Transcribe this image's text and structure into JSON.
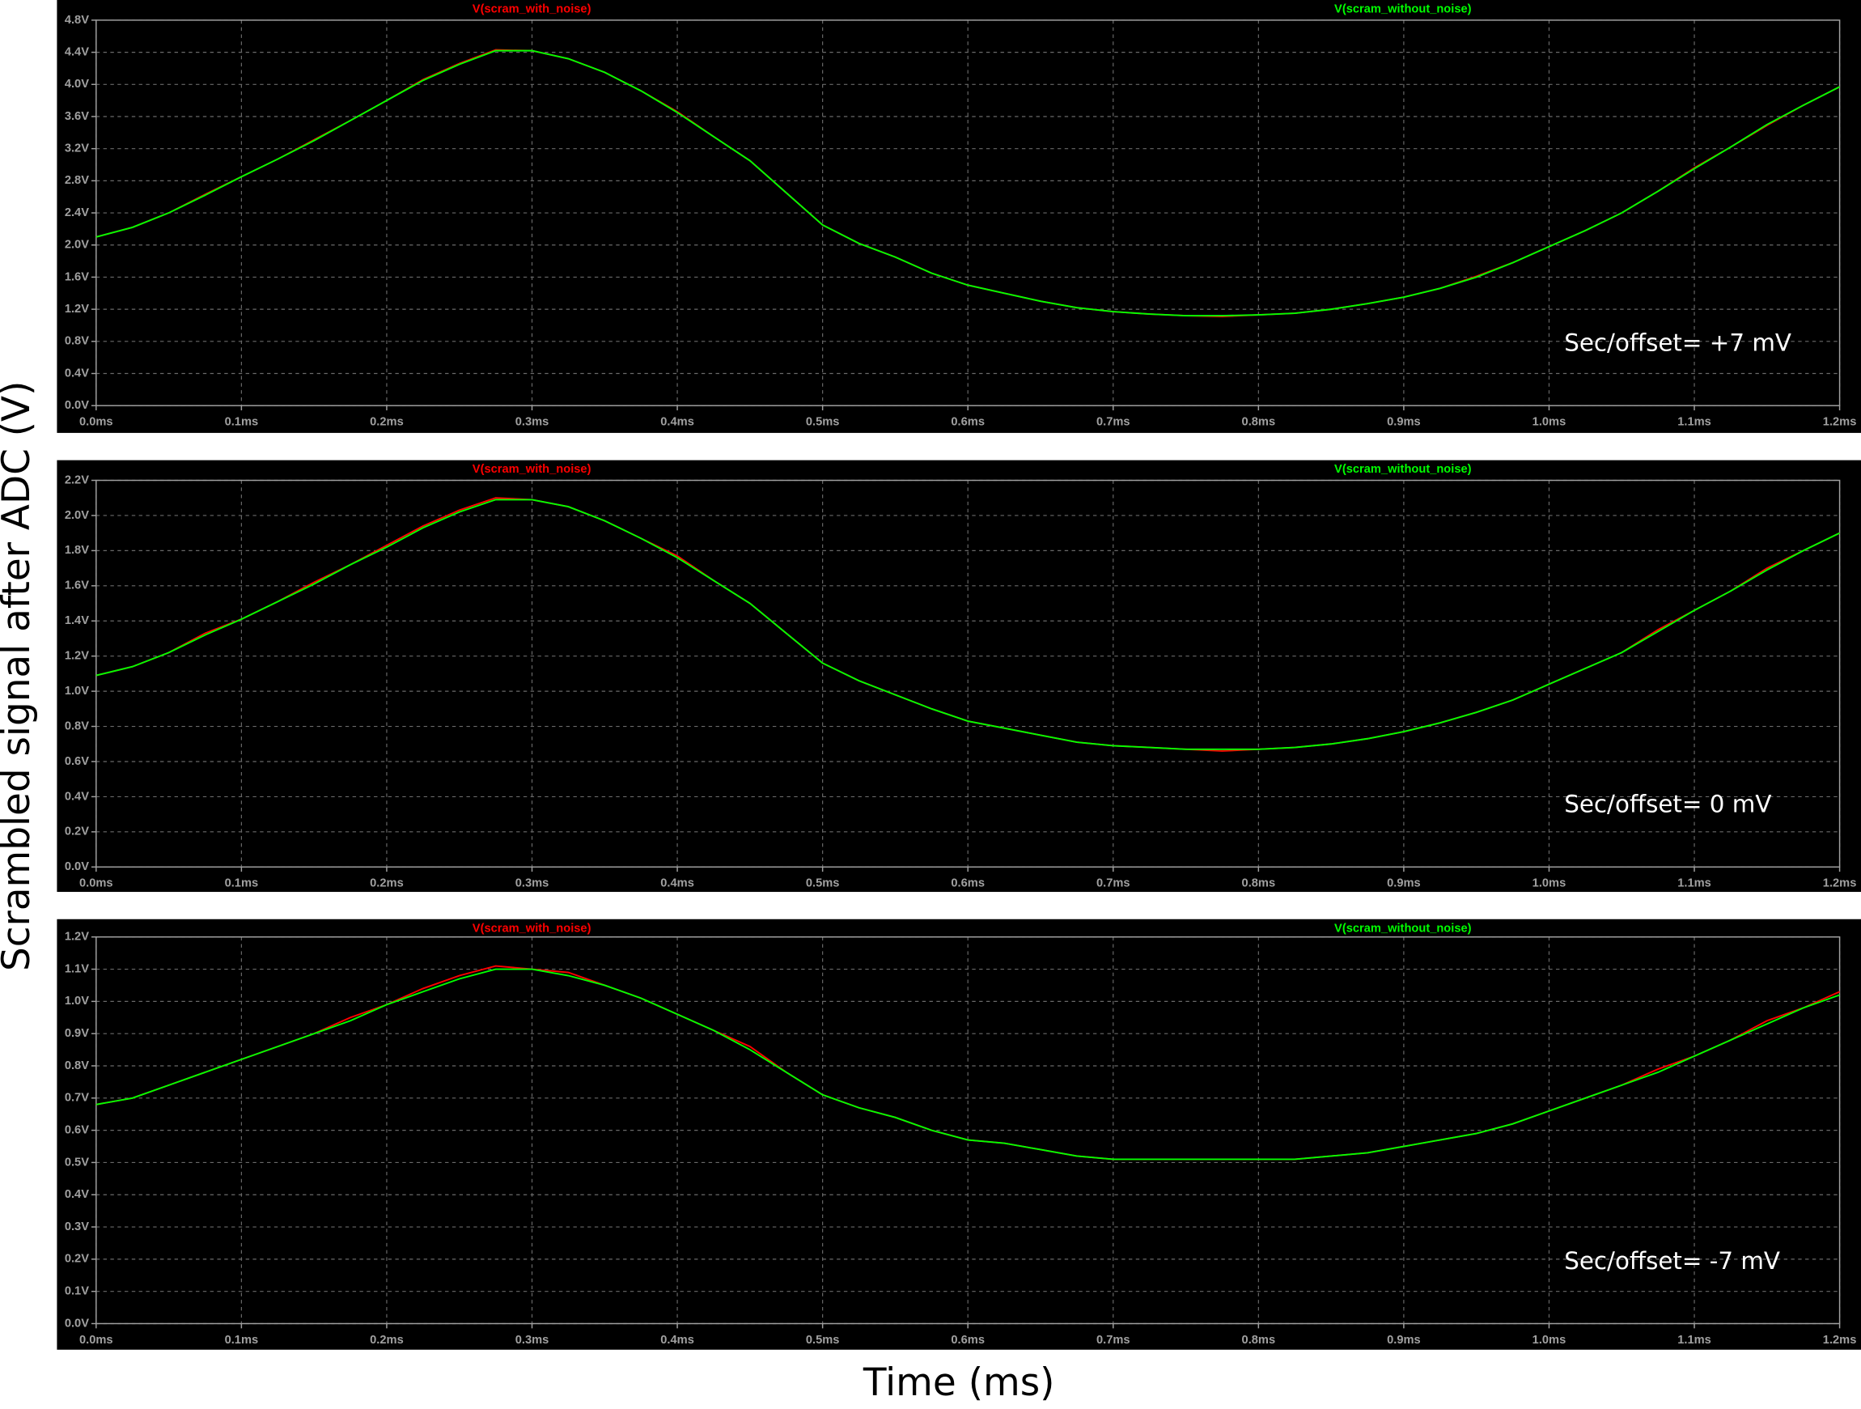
{
  "figure": {
    "xlabel": "Time (ms)",
    "ylabel": "Scrambled signal after ADC (V)"
  },
  "chart_data": [
    {
      "type": "line",
      "annotation": "Sec/offset= +7 mV",
      "x": [
        0,
        0.025,
        0.05,
        0.075,
        0.1,
        0.125,
        0.15,
        0.175,
        0.2,
        0.225,
        0.25,
        0.275,
        0.3,
        0.325,
        0.35,
        0.375,
        0.4,
        0.425,
        0.45,
        0.475,
        0.5,
        0.525,
        0.55,
        0.575,
        0.6,
        0.625,
        0.65,
        0.675,
        0.7,
        0.725,
        0.75,
        0.775,
        0.8,
        0.825,
        0.85,
        0.875,
        0.9,
        0.925,
        0.95,
        0.975,
        1.0,
        1.025,
        1.05,
        1.075,
        1.1,
        1.125,
        1.15,
        1.175,
        1.2
      ],
      "series": [
        {
          "name": "V(scram_with_noise)",
          "color": "#ff0000",
          "values": [
            2.1,
            2.22,
            2.4,
            2.63,
            2.85,
            3.07,
            3.31,
            3.55,
            3.8,
            4.06,
            4.26,
            4.43,
            4.42,
            4.32,
            4.15,
            3.92,
            3.66,
            3.35,
            3.05,
            2.65,
            2.25,
            2.02,
            1.85,
            1.65,
            1.5,
            1.4,
            1.3,
            1.22,
            1.17,
            1.14,
            1.12,
            1.11,
            1.13,
            1.15,
            1.2,
            1.27,
            1.35,
            1.46,
            1.61,
            1.78,
            1.98,
            2.18,
            2.4,
            2.67,
            2.96,
            3.22,
            3.49,
            3.74,
            3.97
          ]
        },
        {
          "name": "V(scram_without_noise)",
          "color": "#00ff00",
          "values": [
            2.1,
            2.22,
            2.4,
            2.62,
            2.85,
            3.07,
            3.3,
            3.55,
            3.8,
            4.05,
            4.25,
            4.42,
            4.42,
            4.32,
            4.15,
            3.92,
            3.65,
            3.35,
            3.05,
            2.65,
            2.25,
            2.02,
            1.85,
            1.65,
            1.5,
            1.4,
            1.3,
            1.22,
            1.17,
            1.14,
            1.12,
            1.12,
            1.13,
            1.15,
            1.2,
            1.27,
            1.35,
            1.46,
            1.6,
            1.78,
            1.98,
            2.18,
            2.4,
            2.67,
            2.95,
            3.22,
            3.5,
            3.74,
            3.97
          ]
        }
      ],
      "xlim": [
        0,
        1.2
      ],
      "xticks": [
        {
          "value": 0,
          "label": "0.0ms"
        },
        {
          "value": 0.1,
          "label": "0.1ms"
        },
        {
          "value": 0.2,
          "label": "0.2ms"
        },
        {
          "value": 0.3,
          "label": "0.3ms"
        },
        {
          "value": 0.4,
          "label": "0.4ms"
        },
        {
          "value": 0.5,
          "label": "0.5ms"
        },
        {
          "value": 0.6,
          "label": "0.6ms"
        },
        {
          "value": 0.7,
          "label": "0.7ms"
        },
        {
          "value": 0.8,
          "label": "0.8ms"
        },
        {
          "value": 0.9,
          "label": "0.9ms"
        },
        {
          "value": 1.0,
          "label": "1.0ms"
        },
        {
          "value": 1.1,
          "label": "1.1ms"
        },
        {
          "value": 1.2,
          "label": "1.2ms"
        }
      ],
      "ylim": [
        0,
        4.8
      ],
      "yticks": [
        {
          "value": 0,
          "label": "0.0V"
        },
        {
          "value": 0.4,
          "label": "0.4V"
        },
        {
          "value": 0.8,
          "label": "0.8V"
        },
        {
          "value": 1.2,
          "label": "1.2V"
        },
        {
          "value": 1.6,
          "label": "1.6V"
        },
        {
          "value": 2.0,
          "label": "2.0V"
        },
        {
          "value": 2.4,
          "label": "2.4V"
        },
        {
          "value": 2.8,
          "label": "2.8V"
        },
        {
          "value": 3.2,
          "label": "3.2V"
        },
        {
          "value": 3.6,
          "label": "3.6V"
        },
        {
          "value": 4.0,
          "label": "4.0V"
        },
        {
          "value": 4.4,
          "label": "4.4V"
        },
        {
          "value": 4.8,
          "label": "4.8V"
        }
      ],
      "grid": true
    },
    {
      "type": "line",
      "annotation": "Sec/offset= 0 mV",
      "x": [
        0,
        0.025,
        0.05,
        0.075,
        0.1,
        0.125,
        0.15,
        0.175,
        0.2,
        0.225,
        0.25,
        0.275,
        0.3,
        0.325,
        0.35,
        0.375,
        0.4,
        0.425,
        0.45,
        0.475,
        0.5,
        0.525,
        0.55,
        0.575,
        0.6,
        0.625,
        0.65,
        0.675,
        0.7,
        0.725,
        0.75,
        0.775,
        0.8,
        0.825,
        0.85,
        0.875,
        0.9,
        0.925,
        0.95,
        0.975,
        1.0,
        1.025,
        1.05,
        1.075,
        1.1,
        1.125,
        1.15,
        1.175,
        1.2
      ],
      "series": [
        {
          "name": "V(scram_with_noise)",
          "color": "#ff0000",
          "values": [
            1.09,
            1.14,
            1.22,
            1.33,
            1.41,
            1.51,
            1.62,
            1.72,
            1.83,
            1.94,
            2.03,
            2.1,
            2.09,
            2.05,
            1.97,
            1.87,
            1.77,
            1.63,
            1.5,
            1.33,
            1.16,
            1.06,
            0.98,
            0.9,
            0.83,
            0.79,
            0.75,
            0.71,
            0.69,
            0.68,
            0.67,
            0.66,
            0.67,
            0.68,
            0.7,
            0.73,
            0.77,
            0.82,
            0.88,
            0.95,
            1.04,
            1.13,
            1.22,
            1.35,
            1.46,
            1.57,
            1.7,
            1.8,
            1.9
          ]
        },
        {
          "name": "V(scram_without_noise)",
          "color": "#00ff00",
          "values": [
            1.09,
            1.14,
            1.22,
            1.32,
            1.41,
            1.51,
            1.61,
            1.72,
            1.82,
            1.93,
            2.02,
            2.09,
            2.09,
            2.05,
            1.97,
            1.87,
            1.76,
            1.63,
            1.5,
            1.33,
            1.16,
            1.06,
            0.98,
            0.9,
            0.83,
            0.79,
            0.75,
            0.71,
            0.69,
            0.68,
            0.67,
            0.67,
            0.67,
            0.68,
            0.7,
            0.73,
            0.77,
            0.82,
            0.88,
            0.95,
            1.04,
            1.13,
            1.22,
            1.34,
            1.46,
            1.57,
            1.69,
            1.8,
            1.9
          ]
        }
      ],
      "xlim": [
        0,
        1.2
      ],
      "xticks": [
        {
          "value": 0,
          "label": "0.0ms"
        },
        {
          "value": 0.1,
          "label": "0.1ms"
        },
        {
          "value": 0.2,
          "label": "0.2ms"
        },
        {
          "value": 0.3,
          "label": "0.3ms"
        },
        {
          "value": 0.4,
          "label": "0.4ms"
        },
        {
          "value": 0.5,
          "label": "0.5ms"
        },
        {
          "value": 0.6,
          "label": "0.6ms"
        },
        {
          "value": 0.7,
          "label": "0.7ms"
        },
        {
          "value": 0.8,
          "label": "0.8ms"
        },
        {
          "value": 0.9,
          "label": "0.9ms"
        },
        {
          "value": 1.0,
          "label": "1.0ms"
        },
        {
          "value": 1.1,
          "label": "1.1ms"
        },
        {
          "value": 1.2,
          "label": "1.2ms"
        }
      ],
      "ylim": [
        0,
        2.2
      ],
      "yticks": [
        {
          "value": 0,
          "label": "0.0V"
        },
        {
          "value": 0.2,
          "label": "0.2V"
        },
        {
          "value": 0.4,
          "label": "0.4V"
        },
        {
          "value": 0.6,
          "label": "0.6V"
        },
        {
          "value": 0.8,
          "label": "0.8V"
        },
        {
          "value": 1.0,
          "label": "1.0V"
        },
        {
          "value": 1.2,
          "label": "1.2V"
        },
        {
          "value": 1.4,
          "label": "1.4V"
        },
        {
          "value": 1.6,
          "label": "1.6V"
        },
        {
          "value": 1.8,
          "label": "1.8V"
        },
        {
          "value": 2.0,
          "label": "2.0V"
        },
        {
          "value": 2.2,
          "label": "2.2V"
        }
      ],
      "grid": true
    },
    {
      "type": "line",
      "annotation": "Sec/offset= -7 mV",
      "x": [
        0,
        0.025,
        0.05,
        0.075,
        0.1,
        0.125,
        0.15,
        0.175,
        0.2,
        0.225,
        0.25,
        0.275,
        0.3,
        0.325,
        0.35,
        0.375,
        0.4,
        0.425,
        0.45,
        0.475,
        0.5,
        0.525,
        0.55,
        0.575,
        0.6,
        0.625,
        0.65,
        0.675,
        0.7,
        0.725,
        0.75,
        0.775,
        0.8,
        0.825,
        0.85,
        0.875,
        0.9,
        0.925,
        0.95,
        0.975,
        1.0,
        1.025,
        1.05,
        1.075,
        1.1,
        1.125,
        1.15,
        1.175,
        1.2
      ],
      "series": [
        {
          "name": "V(scram_with_noise)",
          "color": "#ff0000",
          "values": [
            0.68,
            0.7,
            0.74,
            0.78,
            0.82,
            0.86,
            0.9,
            0.95,
            0.99,
            1.04,
            1.08,
            1.11,
            1.1,
            1.09,
            1.05,
            1.01,
            0.96,
            0.91,
            0.86,
            0.78,
            0.71,
            0.67,
            0.64,
            0.6,
            0.57,
            0.56,
            0.54,
            0.52,
            0.51,
            0.51,
            0.51,
            0.51,
            0.51,
            0.51,
            0.52,
            0.53,
            0.55,
            0.57,
            0.59,
            0.62,
            0.66,
            0.7,
            0.74,
            0.79,
            0.83,
            0.88,
            0.94,
            0.98,
            1.03
          ]
        },
        {
          "name": "V(scram_without_noise)",
          "color": "#00ff00",
          "values": [
            0.68,
            0.7,
            0.74,
            0.78,
            0.82,
            0.86,
            0.9,
            0.94,
            0.99,
            1.03,
            1.07,
            1.1,
            1.1,
            1.08,
            1.05,
            1.01,
            0.96,
            0.91,
            0.85,
            0.78,
            0.71,
            0.67,
            0.64,
            0.6,
            0.57,
            0.56,
            0.54,
            0.52,
            0.51,
            0.51,
            0.51,
            0.51,
            0.51,
            0.51,
            0.52,
            0.53,
            0.55,
            0.57,
            0.59,
            0.62,
            0.66,
            0.7,
            0.74,
            0.78,
            0.83,
            0.88,
            0.93,
            0.98,
            1.02
          ]
        }
      ],
      "xlim": [
        0,
        1.2
      ],
      "xticks": [
        {
          "value": 0,
          "label": "0.0ms"
        },
        {
          "value": 0.1,
          "label": "0.1ms"
        },
        {
          "value": 0.2,
          "label": "0.2ms"
        },
        {
          "value": 0.3,
          "label": "0.3ms"
        },
        {
          "value": 0.4,
          "label": "0.4ms"
        },
        {
          "value": 0.5,
          "label": "0.5ms"
        },
        {
          "value": 0.6,
          "label": "0.6ms"
        },
        {
          "value": 0.7,
          "label": "0.7ms"
        },
        {
          "value": 0.8,
          "label": "0.8ms"
        },
        {
          "value": 0.9,
          "label": "0.9ms"
        },
        {
          "value": 1.0,
          "label": "1.0ms"
        },
        {
          "value": 1.1,
          "label": "1.1ms"
        },
        {
          "value": 1.2,
          "label": "1.2ms"
        }
      ],
      "ylim": [
        0,
        1.2
      ],
      "yticks": [
        {
          "value": 0,
          "label": "0.0V"
        },
        {
          "value": 0.1,
          "label": "0.1V"
        },
        {
          "value": 0.2,
          "label": "0.2V"
        },
        {
          "value": 0.3,
          "label": "0.3V"
        },
        {
          "value": 0.4,
          "label": "0.4V"
        },
        {
          "value": 0.5,
          "label": "0.5V"
        },
        {
          "value": 0.6,
          "label": "0.6V"
        },
        {
          "value": 0.7,
          "label": "0.7V"
        },
        {
          "value": 0.8,
          "label": "0.8V"
        },
        {
          "value": 0.9,
          "label": "0.9V"
        },
        {
          "value": 1.0,
          "label": "1.0V"
        },
        {
          "value": 1.1,
          "label": "1.1V"
        },
        {
          "value": 1.2,
          "label": "1.2V"
        }
      ],
      "grid": true
    }
  ]
}
